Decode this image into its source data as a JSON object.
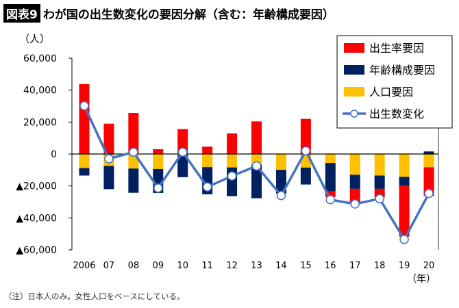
{
  "header": {
    "badge": "図表9",
    "title": "わが国の出生数変化の要因分解（含む：年齢構成要因）"
  },
  "note": "（注）日本人のみ。女性人口をベースにしている。",
  "chart_data": {
    "type": "bar",
    "stacked": true,
    "title": "わが国の出生数変化の要因分解（含む：年齢構成要因）",
    "ylabel": "（人）",
    "xlabel": "（年）",
    "ylim": [
      -60000,
      60000
    ],
    "yticks": [
      60000,
      40000,
      20000,
      0,
      -20000,
      -40000,
      -60000
    ],
    "ytick_labels": [
      "60,000",
      "40,000",
      "20,000",
      "0",
      "▲20,000",
      "▲40,000",
      "▲60,000"
    ],
    "categories": [
      "2006",
      "07",
      "08",
      "09",
      "10",
      "11",
      "12",
      "13",
      "14",
      "15",
      "16",
      "17",
      "18",
      "19",
      "20"
    ],
    "legend_position": "top-right",
    "grid": false,
    "series": [
      {
        "name": "出生率要因",
        "type": "bar",
        "color": "#ff0000",
        "values": [
          43800,
          19000,
          25700,
          3000,
          15600,
          4600,
          12900,
          20400,
          0,
          22000,
          -3500,
          -8300,
          -5500,
          -32000,
          -18000
        ]
      },
      {
        "name": "年齢構成要因",
        "type": "bar",
        "color": "#002060",
        "values": [
          -4700,
          -14500,
          -15200,
          -15000,
          -14000,
          -17000,
          -18000,
          -21000,
          -14900,
          -10600,
          -17800,
          -8800,
          -8300,
          -5400,
          1600
        ]
      },
      {
        "name": "人口要因",
        "type": "bar",
        "color": "#ffc000",
        "values": [
          -8800,
          -7500,
          -9100,
          -9400,
          -500,
          -8200,
          -8400,
          -6700,
          -9900,
          -8500,
          -5600,
          -13000,
          -13500,
          -14300,
          -8300
        ]
      },
      {
        "name": "出生数変化",
        "type": "line",
        "color": "#4472c4",
        "values": [
          30200,
          -3000,
          1200,
          -21300,
          1200,
          -20600,
          -13800,
          -7500,
          -26000,
          2000,
          -28600,
          -31300,
          -28000,
          -53500,
          -24700
        ]
      }
    ]
  }
}
